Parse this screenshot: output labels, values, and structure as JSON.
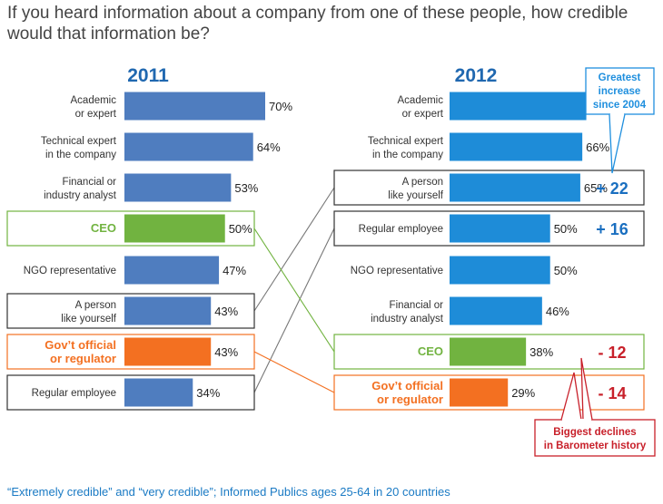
{
  "title": "If you heard information about a company from one of these people, how credible would that information be?",
  "footnote": "“Extremely credible” and “very credible”; Informed Publics ages 25-64  in 20 countries",
  "colors": {
    "bar_2011": "#4f7dbf",
    "bar_2012": "#1e8cd8",
    "ceo": "#71b340",
    "govt": "#f37021",
    "year_title": "#2068b0",
    "increase": "#1a6fc0",
    "decrease": "#c8202a",
    "callout_up_text": "#1f8fde",
    "callout_down_text": "#c8202a"
  },
  "chart_data": {
    "type": "bar",
    "panels": [
      {
        "year": "2011",
        "categories": [
          "Academic or expert",
          "Technical expert in the company",
          "Financial or industry analyst",
          "CEO",
          "NGO representative",
          "A person like yourself",
          "Gov’t official or regulator",
          "Regular employee"
        ],
        "labels": [
          [
            "Academic",
            "or expert"
          ],
          [
            "Technical expert",
            "in the company"
          ],
          [
            "Financial or",
            "industry analyst"
          ],
          [
            "CEO"
          ],
          [
            "NGO representative"
          ],
          [
            "A person",
            "like yourself"
          ],
          [
            "Gov’t official",
            "or regulator"
          ],
          [
            "Regular employee"
          ]
        ],
        "values": [
          70,
          64,
          53,
          50,
          47,
          43,
          43,
          34
        ],
        "value_labels": [
          "70%",
          "64%",
          "53%",
          "50%",
          "47%",
          "43%",
          "43%",
          "34%"
        ]
      },
      {
        "year": "2012",
        "categories": [
          "Academic or expert",
          "Technical expert in the company",
          "A person like yourself",
          "Regular employee",
          "NGO representative",
          "Financial or industry analyst",
          "CEO",
          "Gov’t official or regulator"
        ],
        "labels": [
          [
            "Academic",
            "or expert"
          ],
          [
            "Technical expert",
            "in the company"
          ],
          [
            "A person",
            "like yourself"
          ],
          [
            "Regular employee"
          ],
          [
            "NGO representative"
          ],
          [
            "Financial or",
            "industry analyst"
          ],
          [
            "CEO"
          ],
          [
            "Gov’t official",
            "or regulator"
          ]
        ],
        "values": [
          68,
          66,
          65,
          50,
          50,
          46,
          38,
          29
        ],
        "value_labels": [
          "68%",
          "66%",
          "65%",
          "50%",
          "50%",
          "46%",
          "38%",
          "29%"
        ]
      }
    ],
    "changes": [
      {
        "category": "A person like yourself",
        "label": "+ 22"
      },
      {
        "category": "Regular employee",
        "label": "+ 16"
      },
      {
        "category": "CEO",
        "label": "- 12"
      },
      {
        "category": "Gov’t official or regulator",
        "label": "- 14"
      }
    ],
    "callouts": {
      "increase": [
        "Greatest",
        "increase",
        "since 2004"
      ],
      "decrease": [
        "Biggest declines",
        "in Barometer history"
      ]
    }
  }
}
